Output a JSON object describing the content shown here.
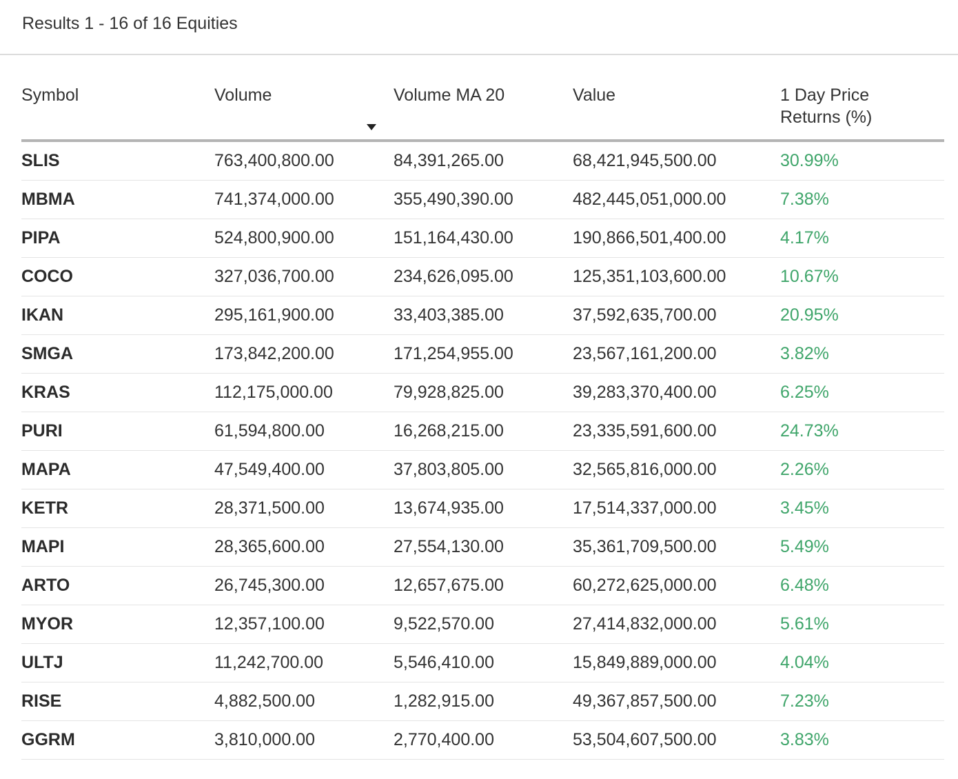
{
  "header": {
    "results_text": "Results 1 - 16 of 16 Equities"
  },
  "table": {
    "columns": {
      "symbol": "Symbol",
      "volume": "Volume",
      "volume_ma20": "Volume MA 20",
      "value": "Value",
      "return_line1": "1 Day Price",
      "return_line2": "Returns (%)"
    },
    "sort": {
      "column": "Volume",
      "direction": "descending"
    },
    "positive_color": "#3fa56a",
    "rows": [
      {
        "symbol": "SLIS",
        "volume": "763,400,800.00",
        "vma20": "84,391,265.00",
        "value": "68,421,945,500.00",
        "ret": "30.99%"
      },
      {
        "symbol": "MBMA",
        "volume": "741,374,000.00",
        "vma20": "355,490,390.00",
        "value": "482,445,051,000.00",
        "ret": "7.38%"
      },
      {
        "symbol": "PIPA",
        "volume": "524,800,900.00",
        "vma20": "151,164,430.00",
        "value": "190,866,501,400.00",
        "ret": "4.17%"
      },
      {
        "symbol": "COCO",
        "volume": "327,036,700.00",
        "vma20": "234,626,095.00",
        "value": "125,351,103,600.00",
        "ret": "10.67%"
      },
      {
        "symbol": "IKAN",
        "volume": "295,161,900.00",
        "vma20": "33,403,385.00",
        "value": "37,592,635,700.00",
        "ret": "20.95%"
      },
      {
        "symbol": "SMGA",
        "volume": "173,842,200.00",
        "vma20": "171,254,955.00",
        "value": "23,567,161,200.00",
        "ret": "3.82%"
      },
      {
        "symbol": "KRAS",
        "volume": "112,175,000.00",
        "vma20": "79,928,825.00",
        "value": "39,283,370,400.00",
        "ret": "6.25%"
      },
      {
        "symbol": "PURI",
        "volume": "61,594,800.00",
        "vma20": "16,268,215.00",
        "value": "23,335,591,600.00",
        "ret": "24.73%"
      },
      {
        "symbol": "MAPA",
        "volume": "47,549,400.00",
        "vma20": "37,803,805.00",
        "value": "32,565,816,000.00",
        "ret": "2.26%"
      },
      {
        "symbol": "KETR",
        "volume": "28,371,500.00",
        "vma20": "13,674,935.00",
        "value": "17,514,337,000.00",
        "ret": "3.45%"
      },
      {
        "symbol": "MAPI",
        "volume": "28,365,600.00",
        "vma20": "27,554,130.00",
        "value": "35,361,709,500.00",
        "ret": "5.49%"
      },
      {
        "symbol": "ARTO",
        "volume": "26,745,300.00",
        "vma20": "12,657,675.00",
        "value": "60,272,625,000.00",
        "ret": "6.48%"
      },
      {
        "symbol": "MYOR",
        "volume": "12,357,100.00",
        "vma20": "9,522,570.00",
        "value": "27,414,832,000.00",
        "ret": "5.61%"
      },
      {
        "symbol": "ULTJ",
        "volume": "11,242,700.00",
        "vma20": "5,546,410.00",
        "value": "15,849,889,000.00",
        "ret": "4.04%"
      },
      {
        "symbol": "RISE",
        "volume": "4,882,500.00",
        "vma20": "1,282,915.00",
        "value": "49,367,857,500.00",
        "ret": "7.23%"
      },
      {
        "symbol": "GGRM",
        "volume": "3,810,000.00",
        "vma20": "2,770,400.00",
        "value": "53,504,607,500.00",
        "ret": "3.83%"
      }
    ]
  }
}
